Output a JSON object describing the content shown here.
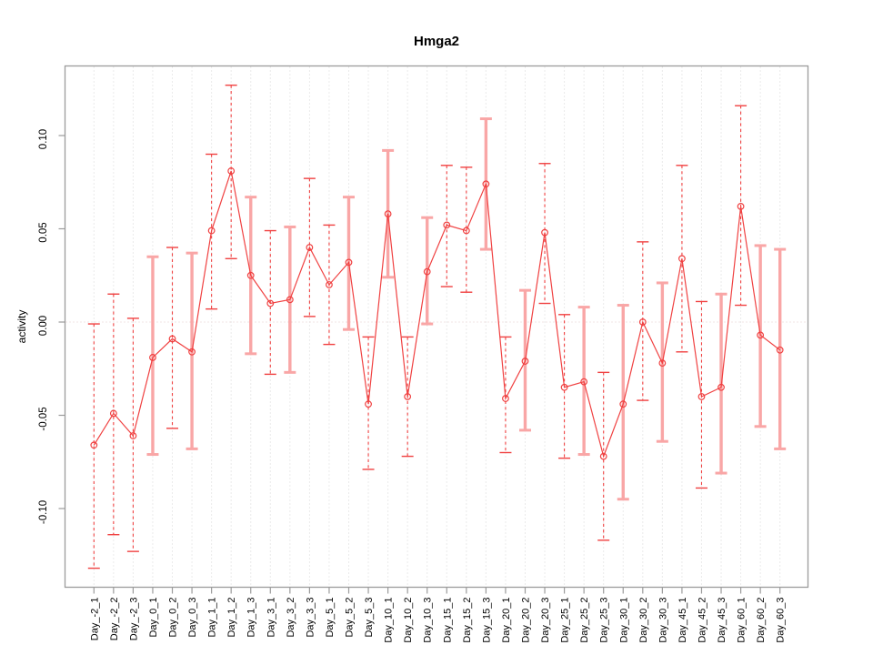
{
  "title": "Hmga2",
  "chart_data": {
    "type": "line",
    "title": "Hmga2",
    "xlabel": "",
    "ylabel": "activity",
    "legend": "none",
    "marker": "open-circle",
    "grid": "vertical-dotted",
    "zero_line": true,
    "ylim": [
      -0.142,
      0.137
    ],
    "yticks": [
      0.1,
      0.05,
      0.0,
      -0.05,
      -0.1
    ],
    "ytick_labels": [
      "0.10",
      "0.05",
      "0.00",
      "-0.05",
      "-0.10"
    ],
    "categories": [
      "Day_-2_1",
      "Day_-2_2",
      "Day_-2_3",
      "Day_0_1",
      "Day_0_2",
      "Day_0_3",
      "Day_1_1",
      "Day_1_2",
      "Day_1_3",
      "Day_3_1",
      "Day_3_2",
      "Day_3_3",
      "Day_5_1",
      "Day_5_2",
      "Day_5_3",
      "Day_10_1",
      "Day_10_2",
      "Day_10_3",
      "Day_15_1",
      "Day_15_2",
      "Day_15_3",
      "Day_20_1",
      "Day_20_2",
      "Day_20_3",
      "Day_25_1",
      "Day_25_2",
      "Day_25_3",
      "Day_30_1",
      "Day_30_2",
      "Day_30_3",
      "Day_45_1",
      "Day_45_2",
      "Day_45_3",
      "Day_60_1",
      "Day_60_2",
      "Day_60_3"
    ],
    "series": [
      {
        "name": "activity",
        "values": [
          -0.066,
          -0.049,
          -0.061,
          -0.019,
          -0.009,
          -0.016,
          0.049,
          0.081,
          0.025,
          0.01,
          0.012,
          0.04,
          0.02,
          0.032,
          -0.044,
          0.058,
          -0.04,
          0.027,
          0.052,
          0.049,
          0.074,
          -0.041,
          -0.021,
          0.048,
          -0.035,
          -0.032,
          -0.072,
          -0.044,
          0.0,
          -0.022,
          0.034,
          -0.04,
          -0.035,
          0.062,
          -0.007,
          -0.015
        ],
        "error_high": [
          -0.001,
          0.015,
          0.002,
          0.035,
          0.04,
          0.037,
          0.09,
          0.127,
          0.067,
          0.049,
          0.051,
          0.077,
          0.052,
          0.067,
          -0.008,
          0.092,
          -0.008,
          0.056,
          0.084,
          0.083,
          0.109,
          -0.008,
          0.017,
          0.085,
          0.004,
          0.008,
          -0.027,
          0.009,
          0.043,
          0.021,
          0.084,
          0.011,
          0.015,
          0.116,
          0.041,
          0.039
        ],
        "error_low": [
          -0.132,
          -0.114,
          -0.123,
          -0.071,
          -0.057,
          -0.068,
          0.007,
          0.034,
          -0.017,
          -0.028,
          -0.027,
          0.003,
          -0.012,
          -0.004,
          -0.079,
          0.024,
          -0.072,
          -0.001,
          0.019,
          0.016,
          0.039,
          -0.07,
          -0.058,
          0.01,
          -0.073,
          -0.071,
          -0.117,
          -0.095,
          -0.042,
          -0.064,
          -0.016,
          -0.089,
          -0.081,
          0.009,
          -0.056,
          -0.068
        ],
        "bar_styles": [
          "dashed",
          "dashed",
          "dashed",
          "solid",
          "dashed",
          "solid",
          "dashed",
          "dashed",
          "solid",
          "dashed",
          "solid",
          "dashed",
          "dashed",
          "solid",
          "dashed",
          "solid",
          "dashed",
          "solid",
          "dashed",
          "dashed",
          "solid",
          "dashed",
          "solid",
          "dashed",
          "dashed",
          "solid",
          "dashed",
          "solid",
          "dashed",
          "solid",
          "dashed",
          "dashed",
          "solid",
          "dashed",
          "solid",
          "solid"
        ]
      }
    ],
    "colors": {
      "series": "#f04141",
      "band": "#f9a6a6",
      "grid": "#d6d6d6",
      "zero": "#e4caca",
      "frame": "#9b9b9b",
      "text": "#000000"
    }
  }
}
